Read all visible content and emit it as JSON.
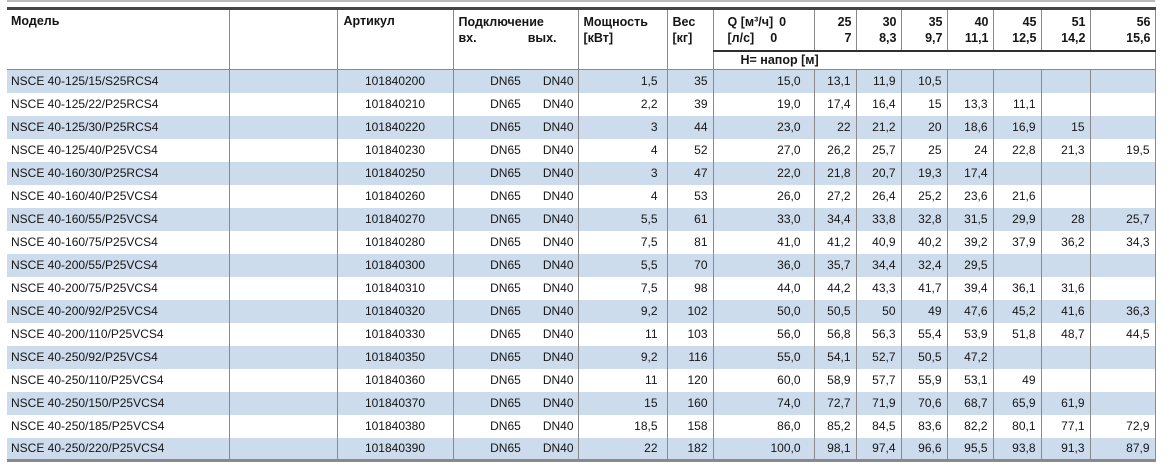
{
  "colors": {
    "alt_row": "#cddcec",
    "grid_line": "#8a8a8a",
    "heavy_rule_top": "#454545",
    "heavy_rule_bottom": "#8a8a8a"
  },
  "table": {
    "headers": {
      "model": "Модель",
      "article": "Артикул",
      "connection": "Подключение",
      "conn_in": "вх.",
      "conn_out": "вых.",
      "power_line1": "Мощность",
      "power_line2": "[кВт]",
      "weight_line1": "Вес",
      "weight_line2": "[кг]",
      "q_m3h_label": "Q [м³/ч]",
      "q_ls_label": "[л/с]",
      "q_zero_m3h": "0",
      "q_zero_ls": "0",
      "head_row_label": "Н= напор [м]",
      "flow_columns": [
        {
          "m3h": "25",
          "ls": "7"
        },
        {
          "m3h": "30",
          "ls": "8,3"
        },
        {
          "m3h": "35",
          "ls": "9,7"
        },
        {
          "m3h": "40",
          "ls": "11,1"
        },
        {
          "m3h": "45",
          "ls": "12,5"
        },
        {
          "m3h": "51",
          "ls": "14,2"
        },
        {
          "m3h": "56",
          "ls": "15,6"
        }
      ]
    },
    "rows": [
      {
        "model": "NSCE 40-125/15/S25RCS4",
        "article": "101840200",
        "conn_in": "DN65",
        "conn_out": "DN40",
        "power": "1,5",
        "weight": "35",
        "heads": [
          "15,0",
          "13,1",
          "11,9",
          "10,5",
          "",
          "",
          "",
          ""
        ]
      },
      {
        "model": "NSCE 40-125/22/P25RCS4",
        "article": "101840210",
        "conn_in": "DN65",
        "conn_out": "DN40",
        "power": "2,2",
        "weight": "39",
        "heads": [
          "19,0",
          "17,4",
          "16,4",
          "15",
          "13,3",
          "11,1",
          "",
          ""
        ]
      },
      {
        "model": "NSCE 40-125/30/P25RCS4",
        "article": "101840220",
        "conn_in": "DN65",
        "conn_out": "DN40",
        "power": "3",
        "weight": "44",
        "heads": [
          "23,0",
          "22",
          "21,2",
          "20",
          "18,6",
          "16,9",
          "15",
          ""
        ]
      },
      {
        "model": "NSCE 40-125/40/P25VCS4",
        "article": "101840230",
        "conn_in": "DN65",
        "conn_out": "DN40",
        "power": "4",
        "weight": "52",
        "heads": [
          "27,0",
          "26,2",
          "25,7",
          "25",
          "24",
          "22,8",
          "21,3",
          "19,5"
        ]
      },
      {
        "model": "NSCE 40-160/30/P25RCS4",
        "article": "101840250",
        "conn_in": "DN65",
        "conn_out": "DN40",
        "power": "3",
        "weight": "47",
        "heads": [
          "22,0",
          "21,8",
          "20,7",
          "19,3",
          "17,4",
          "",
          "",
          ""
        ]
      },
      {
        "model": "NSCE 40-160/40/P25VCS4",
        "article": "101840260",
        "conn_in": "DN65",
        "conn_out": "DN40",
        "power": "4",
        "weight": "53",
        "heads": [
          "26,0",
          "27,2",
          "26,4",
          "25,2",
          "23,6",
          "21,6",
          "",
          ""
        ]
      },
      {
        "model": "NSCE 40-160/55/P25VCS4",
        "article": "101840270",
        "conn_in": "DN65",
        "conn_out": "DN40",
        "power": "5,5",
        "weight": "61",
        "heads": [
          "33,0",
          "34,4",
          "33,8",
          "32,8",
          "31,5",
          "29,9",
          "28",
          "25,7"
        ]
      },
      {
        "model": "NSCE 40-160/75/P25VCS4",
        "article": "101840280",
        "conn_in": "DN65",
        "conn_out": "DN40",
        "power": "7,5",
        "weight": "81",
        "heads": [
          "41,0",
          "41,2",
          "40,9",
          "40,2",
          "39,2",
          "37,9",
          "36,2",
          "34,3"
        ]
      },
      {
        "model": "NSCE 40-200/55/P25VCS4",
        "article": "101840300",
        "conn_in": "DN65",
        "conn_out": "DN40",
        "power": "5,5",
        "weight": "70",
        "heads": [
          "36,0",
          "35,7",
          "34,4",
          "32,4",
          "29,5",
          "",
          "",
          ""
        ]
      },
      {
        "model": "NSCE 40-200/75/P25VCS4",
        "article": "101840310",
        "conn_in": "DN65",
        "conn_out": "DN40",
        "power": "7,5",
        "weight": "98",
        "heads": [
          "44,0",
          "44,2",
          "43,3",
          "41,7",
          "39,4",
          "36,1",
          "31,6",
          ""
        ]
      },
      {
        "model": "NSCE 40-200/92/P25VCS4",
        "article": "101840320",
        "conn_in": "DN65",
        "conn_out": "DN40",
        "power": "9,2",
        "weight": "102",
        "heads": [
          "50,0",
          "50,5",
          "50",
          "49",
          "47,6",
          "45,2",
          "41,6",
          "36,3"
        ]
      },
      {
        "model": "NSCE 40-200/110/P25VCS4",
        "article": "101840330",
        "conn_in": "DN65",
        "conn_out": "DN40",
        "power": "11",
        "weight": "103",
        "heads": [
          "56,0",
          "56,8",
          "56,3",
          "55,4",
          "53,9",
          "51,8",
          "48,7",
          "44,5"
        ]
      },
      {
        "model": "NSCE 40-250/92/P25VCS4",
        "article": "101840350",
        "conn_in": "DN65",
        "conn_out": "DN40",
        "power": "9,2",
        "weight": "116",
        "heads": [
          "55,0",
          "54,1",
          "52,7",
          "50,5",
          "47,2",
          "",
          "",
          ""
        ]
      },
      {
        "model": "NSCE 40-250/110/P25VCS4",
        "article": "101840360",
        "conn_in": "DN65",
        "conn_out": "DN40",
        "power": "11",
        "weight": "120",
        "heads": [
          "60,0",
          "58,9",
          "57,7",
          "55,9",
          "53,1",
          "49",
          "",
          ""
        ]
      },
      {
        "model": "NSCE 40-250/150/P25VCS4",
        "article": "101840370",
        "conn_in": "DN65",
        "conn_out": "DN40",
        "power": "15",
        "weight": "160",
        "heads": [
          "74,0",
          "72,7",
          "71,9",
          "70,6",
          "68,7",
          "65,9",
          "61,9",
          ""
        ]
      },
      {
        "model": "NSCE 40-250/185/P25VCS4",
        "article": "101840380",
        "conn_in": "DN65",
        "conn_out": "DN40",
        "power": "18,5",
        "weight": "158",
        "heads": [
          "86,0",
          "85,2",
          "84,5",
          "83,6",
          "82,2",
          "80,1",
          "77,1",
          "72,9"
        ]
      },
      {
        "model": "NSCE 40-250/220/P25VCS4",
        "article": "101840390",
        "conn_in": "DN65",
        "conn_out": "DN40",
        "power": "22",
        "weight": "182",
        "heads": [
          "100,0",
          "98,1",
          "97,4",
          "96,6",
          "95,5",
          "93,8",
          "91,3",
          "87,9"
        ]
      }
    ]
  }
}
